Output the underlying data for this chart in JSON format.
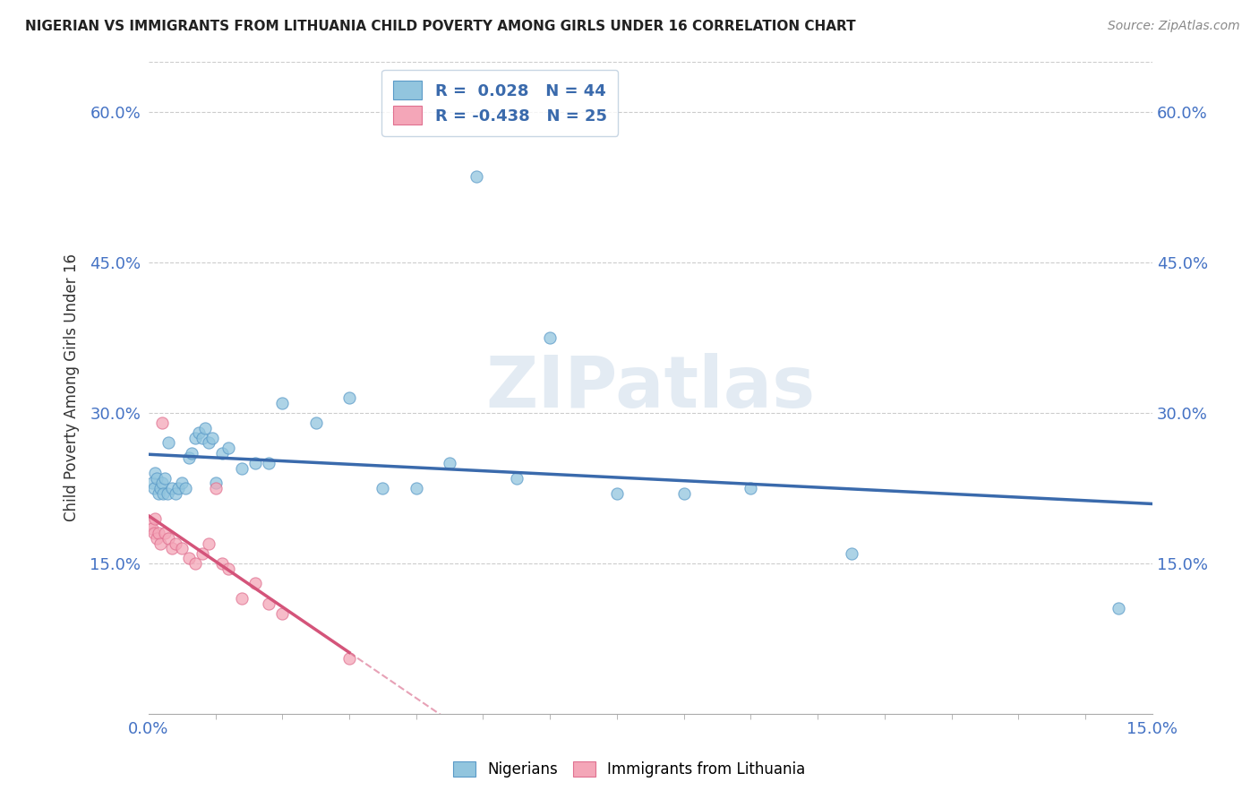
{
  "title": "NIGERIAN VS IMMIGRANTS FROM LITHUANIA CHILD POVERTY AMONG GIRLS UNDER 16 CORRELATION CHART",
  "source": "Source: ZipAtlas.com",
  "ylabel": "Child Poverty Among Girls Under 16",
  "xlim": [
    0.0,
    15.0
  ],
  "ylim": [
    0.0,
    65.0
  ],
  "xtick_vals": [
    0.0,
    15.0
  ],
  "ytick_vals": [
    15.0,
    30.0,
    45.0,
    60.0
  ],
  "r_nigerian": 0.028,
  "n_nigerian": 44,
  "r_lithuania": -0.438,
  "n_lithuania": 25,
  "blue_color": "#92C5DE",
  "pink_color": "#F4A6B8",
  "blue_line_color": "#3A6AAC",
  "pink_line_color": "#D4547A",
  "watermark": "ZIPatlas",
  "nigerian_x": [
    0.05,
    0.08,
    0.1,
    0.12,
    0.15,
    0.18,
    0.2,
    0.22,
    0.25,
    0.28,
    0.3,
    0.35,
    0.4,
    0.45,
    0.5,
    0.55,
    0.6,
    0.65,
    0.7,
    0.75,
    0.8,
    0.85,
    0.9,
    0.95,
    1.0,
    1.1,
    1.2,
    1.4,
    1.6,
    1.8,
    2.0,
    2.5,
    3.0,
    3.5,
    4.0,
    4.5,
    4.9,
    5.5,
    6.0,
    7.0,
    8.0,
    9.0,
    10.5,
    14.5
  ],
  "nigerian_y": [
    23.0,
    22.5,
    24.0,
    23.5,
    22.0,
    22.5,
    23.0,
    22.0,
    23.5,
    22.0,
    27.0,
    22.5,
    22.0,
    22.5,
    23.0,
    22.5,
    25.5,
    26.0,
    27.5,
    28.0,
    27.5,
    28.5,
    27.0,
    27.5,
    23.0,
    26.0,
    26.5,
    24.5,
    25.0,
    25.0,
    31.0,
    29.0,
    31.5,
    22.5,
    22.5,
    25.0,
    53.5,
    23.5,
    37.5,
    22.0,
    22.0,
    22.5,
    16.0,
    10.5
  ],
  "lithuania_x": [
    0.03,
    0.05,
    0.08,
    0.1,
    0.12,
    0.15,
    0.18,
    0.2,
    0.25,
    0.3,
    0.35,
    0.4,
    0.5,
    0.6,
    0.7,
    0.8,
    0.9,
    1.0,
    1.1,
    1.2,
    1.4,
    1.6,
    1.8,
    2.0,
    3.0
  ],
  "lithuania_y": [
    19.0,
    18.5,
    18.0,
    19.5,
    17.5,
    18.0,
    17.0,
    29.0,
    18.0,
    17.5,
    16.5,
    17.0,
    16.5,
    15.5,
    15.0,
    16.0,
    17.0,
    22.5,
    15.0,
    14.5,
    11.5,
    13.0,
    11.0,
    10.0,
    5.5
  ]
}
